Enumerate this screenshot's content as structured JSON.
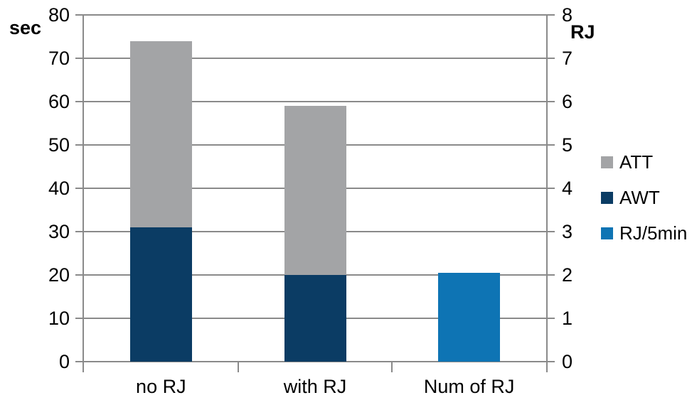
{
  "chart_data": {
    "type": "bar",
    "subtype": "stacked-column-dual-axis",
    "title": "",
    "categories": [
      "no RJ",
      "with RJ",
      "Num of RJ"
    ],
    "series": [
      {
        "name": "AWT",
        "axis": "left",
        "color": "#0b3c64",
        "values": [
          31,
          20,
          null
        ]
      },
      {
        "name": "ATT",
        "axis": "left",
        "color": "#a3a4a6",
        "values": [
          43,
          39,
          null
        ]
      },
      {
        "name": "RJ/5min",
        "axis": "right",
        "color": "#0e74b4",
        "values": [
          null,
          null,
          2.05
        ]
      }
    ],
    "stacked_totals_left_axis": [
      74,
      59,
      null
    ],
    "left_axis": {
      "title": "sec",
      "min": 0,
      "max": 80,
      "step": 10,
      "ticks": [
        "80",
        "70",
        "60",
        "50",
        "40",
        "30",
        "20",
        "10",
        "0"
      ]
    },
    "right_axis": {
      "title": "RJ",
      "min": 0,
      "max": 8,
      "step": 1,
      "ticks": [
        "8",
        "7",
        "6",
        "5",
        "4",
        "3",
        "2",
        "1",
        "0"
      ]
    },
    "legend": {
      "position": "right",
      "entries": [
        {
          "label": "ATT",
          "color": "#a3a4a6"
        },
        {
          "label": "AWT",
          "color": "#0b3c64"
        },
        {
          "label": "RJ/5min",
          "color": "#0e74b4"
        }
      ]
    },
    "grid": true,
    "colors": {
      "background": "#ffffff",
      "gridline": "#8a8a8a",
      "axis_line": "#8a8a8a",
      "text": "#000000"
    }
  }
}
